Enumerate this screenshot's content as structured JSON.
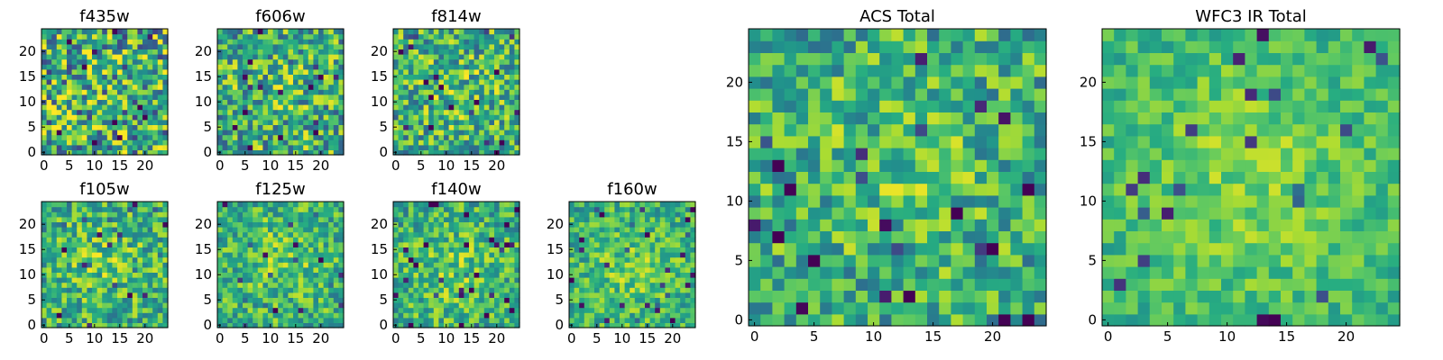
{
  "chart_data": [
    {
      "type": "heatmap",
      "title": "f435w",
      "grid_size": 25,
      "xlim": [
        0,
        24
      ],
      "ylim": [
        0,
        24
      ],
      "xticks": [
        "0",
        "5",
        "10",
        "15",
        "20"
      ],
      "yticks": [
        "0",
        "5",
        "10",
        "15",
        "20"
      ],
      "colormap": "viridis",
      "peak": [
        12,
        12
      ],
      "smoothness": 0.05,
      "noise": 0.85,
      "seed": 11
    },
    {
      "type": "heatmap",
      "title": "f606w",
      "grid_size": 25,
      "xlim": [
        0,
        24
      ],
      "ylim": [
        0,
        24
      ],
      "xticks": [
        "0",
        "5",
        "10",
        "15",
        "20"
      ],
      "yticks": [
        "0",
        "5",
        "10",
        "15",
        "20"
      ],
      "colormap": "viridis",
      "peak": [
        12,
        12
      ],
      "smoothness": 0.25,
      "noise": 0.7,
      "seed": 23
    },
    {
      "type": "heatmap",
      "title": "f814w",
      "grid_size": 25,
      "xlim": [
        0,
        24
      ],
      "ylim": [
        0,
        24
      ],
      "xticks": [
        "0",
        "5",
        "10",
        "15",
        "20"
      ],
      "yticks": [
        "0",
        "5",
        "10",
        "15",
        "20"
      ],
      "colormap": "viridis",
      "peak": [
        12,
        12
      ],
      "smoothness": 0.35,
      "noise": 0.65,
      "seed": 37
    },
    {
      "type": "heatmap",
      "title": "f105w",
      "grid_size": 25,
      "xlim": [
        0,
        24
      ],
      "ylim": [
        0,
        24
      ],
      "xticks": [
        "0",
        "5",
        "10",
        "15",
        "20"
      ],
      "yticks": [
        "0",
        "5",
        "10",
        "15",
        "20"
      ],
      "colormap": "viridis",
      "peak": [
        12,
        12
      ],
      "smoothness": 0.45,
      "noise": 0.55,
      "seed": 41
    },
    {
      "type": "heatmap",
      "title": "f125w",
      "grid_size": 25,
      "xlim": [
        0,
        24
      ],
      "ylim": [
        0,
        24
      ],
      "xticks": [
        "0",
        "5",
        "10",
        "15",
        "20"
      ],
      "yticks": [
        "0",
        "5",
        "10",
        "15",
        "20"
      ],
      "colormap": "viridis",
      "peak": [
        13,
        13
      ],
      "smoothness": 0.5,
      "noise": 0.5,
      "seed": 53
    },
    {
      "type": "heatmap",
      "title": "f140w",
      "grid_size": 25,
      "xlim": [
        0,
        24
      ],
      "ylim": [
        0,
        24
      ],
      "xticks": [
        "0",
        "5",
        "10",
        "15",
        "20"
      ],
      "yticks": [
        "0",
        "5",
        "10",
        "15",
        "20"
      ],
      "colormap": "viridis",
      "peak": [
        11,
        11
      ],
      "smoothness": 0.5,
      "noise": 0.5,
      "seed": 67
    },
    {
      "type": "heatmap",
      "title": "f160w",
      "grid_size": 25,
      "xlim": [
        0,
        24
      ],
      "ylim": [
        0,
        24
      ],
      "xticks": [
        "0",
        "5",
        "10",
        "15",
        "20"
      ],
      "yticks": [
        "0",
        "5",
        "10",
        "15",
        "20"
      ],
      "colormap": "viridis",
      "peak": [
        12,
        11
      ],
      "smoothness": 0.55,
      "noise": 0.45,
      "seed": 71
    },
    {
      "type": "heatmap",
      "title": "ACS Total",
      "grid_size": 25,
      "xlim": [
        0,
        24
      ],
      "ylim": [
        0,
        24
      ],
      "xticks": [
        "0",
        "5",
        "10",
        "15",
        "20"
      ],
      "yticks": [
        "0",
        "5",
        "10",
        "15",
        "20"
      ],
      "colormap": "viridis",
      "peak": [
        12,
        13
      ],
      "smoothness": 0.35,
      "noise": 0.55,
      "seed": 83
    },
    {
      "type": "heatmap",
      "title": "WFC3 IR Total",
      "grid_size": 25,
      "xlim": [
        0,
        24
      ],
      "ylim": [
        0,
        24
      ],
      "xticks": [
        "0",
        "5",
        "10",
        "15",
        "20"
      ],
      "yticks": [
        "0",
        "5",
        "10",
        "15",
        "20"
      ],
      "colormap": "viridis",
      "peak": [
        12,
        12
      ],
      "smoothness": 0.75,
      "noise": 0.3,
      "seed": 97
    }
  ]
}
